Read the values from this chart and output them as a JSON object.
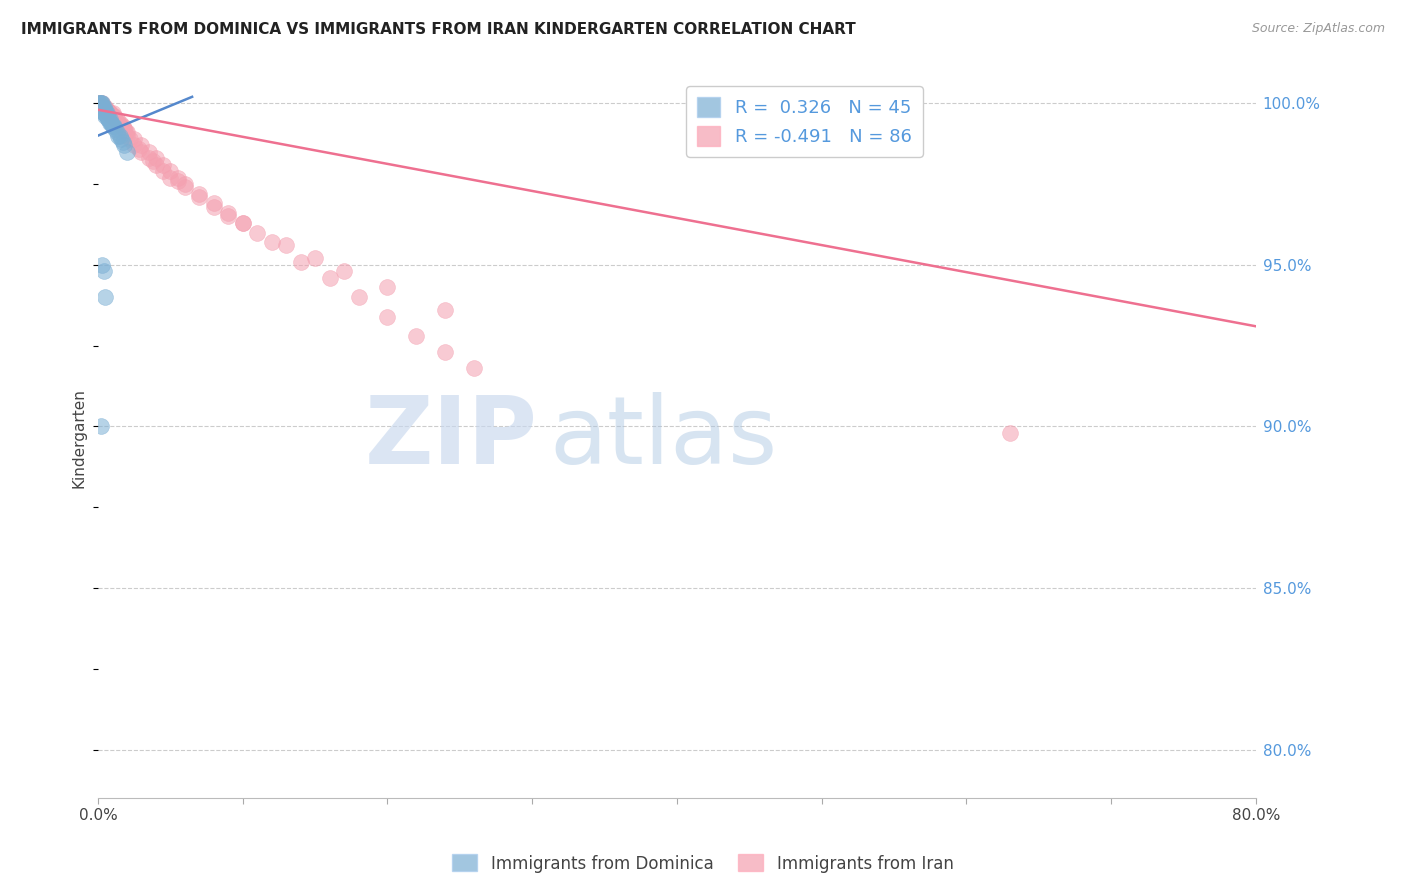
{
  "title": "IMMIGRANTS FROM DOMINICA VS IMMIGRANTS FROM IRAN KINDERGARTEN CORRELATION CHART",
  "source": "Source: ZipAtlas.com",
  "ylabel": "Kindergarten",
  "y_ticks": [
    0.8,
    0.85,
    0.9,
    0.95,
    1.0
  ],
  "y_tick_labels": [
    "80.0%",
    "85.0%",
    "90.0%",
    "95.0%",
    "100.0%"
  ],
  "x_ticks": [
    0.0,
    0.1,
    0.2,
    0.3,
    0.4,
    0.5,
    0.6,
    0.7,
    0.8
  ],
  "x_tick_labels": [
    "0.0%",
    "",
    "",
    "",
    "",
    "",
    "",
    "",
    "80.0%"
  ],
  "x_min": 0.0,
  "x_max": 0.8,
  "y_min": 0.785,
  "y_max": 1.008,
  "dominica_R": 0.326,
  "dominica_N": 45,
  "iran_R": -0.491,
  "iran_N": 86,
  "dominica_color": "#7BAFD4",
  "iran_color": "#F4A0B0",
  "dominica_line_color": "#5588CC",
  "iran_line_color": "#EE7090",
  "bg_color": "#FFFFFF",
  "grid_color": "#CCCCCC",
  "legend_label_dominica": "Immigrants from Dominica",
  "legend_label_iran": "Immigrants from Iran",
  "dominica_line_x": [
    0.0,
    0.065
  ],
  "dominica_line_y": [
    0.99,
    1.002
  ],
  "iran_line_x": [
    0.0,
    0.8
  ],
  "iran_line_y": [
    0.998,
    0.931
  ],
  "dominica_scatter_x": [
    0.001,
    0.001,
    0.001,
    0.002,
    0.002,
    0.002,
    0.002,
    0.003,
    0.003,
    0.003,
    0.003,
    0.003,
    0.004,
    0.004,
    0.004,
    0.004,
    0.005,
    0.005,
    0.005,
    0.005,
    0.006,
    0.006,
    0.006,
    0.007,
    0.007,
    0.007,
    0.008,
    0.008,
    0.009,
    0.009,
    0.01,
    0.01,
    0.011,
    0.012,
    0.013,
    0.014,
    0.015,
    0.016,
    0.017,
    0.018,
    0.02,
    0.003,
    0.004,
    0.005,
    0.002
  ],
  "dominica_scatter_y": [
    1.0,
    1.0,
    0.999,
    1.0,
    0.999,
    0.999,
    1.0,
    1.0,
    0.999,
    0.999,
    0.998,
    0.998,
    0.999,
    0.998,
    0.997,
    0.997,
    0.998,
    0.997,
    0.997,
    0.996,
    0.997,
    0.996,
    0.996,
    0.996,
    0.995,
    0.995,
    0.995,
    0.994,
    0.994,
    0.994,
    0.993,
    0.993,
    0.993,
    0.992,
    0.991,
    0.99,
    0.99,
    0.989,
    0.988,
    0.987,
    0.985,
    0.95,
    0.948,
    0.94,
    0.9
  ],
  "iran_scatter_x": [
    0.001,
    0.001,
    0.002,
    0.002,
    0.002,
    0.003,
    0.003,
    0.003,
    0.004,
    0.004,
    0.004,
    0.005,
    0.005,
    0.005,
    0.006,
    0.006,
    0.007,
    0.007,
    0.008,
    0.008,
    0.009,
    0.01,
    0.01,
    0.011,
    0.012,
    0.013,
    0.014,
    0.015,
    0.016,
    0.017,
    0.018,
    0.019,
    0.02,
    0.022,
    0.025,
    0.028,
    0.03,
    0.035,
    0.038,
    0.04,
    0.045,
    0.05,
    0.055,
    0.06,
    0.07,
    0.08,
    0.09,
    0.1,
    0.11,
    0.13,
    0.15,
    0.17,
    0.2,
    0.24,
    0.005,
    0.006,
    0.007,
    0.008,
    0.009,
    0.01,
    0.012,
    0.014,
    0.016,
    0.018,
    0.02,
    0.025,
    0.03,
    0.035,
    0.04,
    0.045,
    0.05,
    0.055,
    0.06,
    0.07,
    0.08,
    0.09,
    0.1,
    0.12,
    0.14,
    0.16,
    0.18,
    0.2,
    0.22,
    0.24,
    0.26,
    0.63
  ],
  "iran_scatter_y": [
    1.0,
    1.0,
    1.0,
    0.999,
    0.999,
    1.0,
    0.999,
    0.999,
    0.999,
    0.999,
    0.998,
    0.999,
    0.998,
    0.998,
    0.998,
    0.998,
    0.997,
    0.997,
    0.997,
    0.997,
    0.996,
    0.997,
    0.996,
    0.996,
    0.995,
    0.995,
    0.994,
    0.994,
    0.993,
    0.993,
    0.992,
    0.991,
    0.99,
    0.989,
    0.987,
    0.986,
    0.985,
    0.983,
    0.982,
    0.981,
    0.979,
    0.977,
    0.976,
    0.974,
    0.971,
    0.968,
    0.965,
    0.963,
    0.96,
    0.956,
    0.952,
    0.948,
    0.943,
    0.936,
    0.998,
    0.998,
    0.997,
    0.997,
    0.996,
    0.996,
    0.995,
    0.994,
    0.993,
    0.992,
    0.991,
    0.989,
    0.987,
    0.985,
    0.983,
    0.981,
    0.979,
    0.977,
    0.975,
    0.972,
    0.969,
    0.966,
    0.963,
    0.957,
    0.951,
    0.946,
    0.94,
    0.934,
    0.928,
    0.923,
    0.918,
    0.898
  ]
}
